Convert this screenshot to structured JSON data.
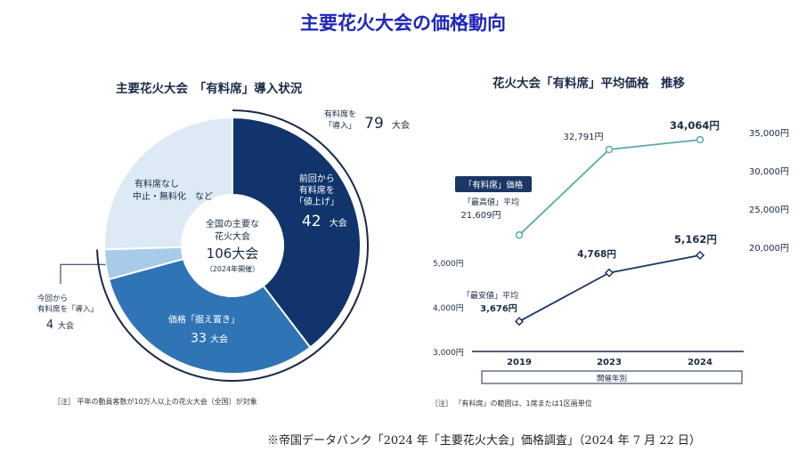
{
  "page_title": "主要花火大会の価格動向",
  "source": "※帝国データバンク「2024 年「主要花火大会」価格調査」（2024 年 7 月 22 日）",
  "colors": {
    "title": "#1f27b8",
    "navy": "#10346b",
    "mid_blue": "#2f74b5",
    "light_blue": "#a9cbea",
    "pale_blue": "#dde9f5",
    "teal": "#5fa9a4",
    "dark_line": "#1b3766"
  },
  "chart_data": [
    {
      "type": "pie",
      "title": "主要花火大会　「有料席」導入状況",
      "center_label": [
        "全国の主要な",
        "花火大会",
        "106大会",
        "（2024年開催）"
      ],
      "total": 106,
      "slices": [
        {
          "name": "前回から有料席を「値上げ」",
          "lines": [
            "前回から",
            "有料席を",
            "「値上げ」"
          ],
          "value": 42,
          "value_label": "42",
          "unit": "大会",
          "color": "#10346b"
        },
        {
          "name": "価格「据え置き」",
          "lines": [
            "価格「据え置き」"
          ],
          "value": 33,
          "value_label": "33",
          "unit": "大会",
          "color": "#2f74b5"
        },
        {
          "name": "今回から有料席を「導入」",
          "lines": [
            "今回から",
            "有料席を「導入」"
          ],
          "value": 4,
          "value_label": "4",
          "unit": "大会",
          "color": "#a9cbea"
        },
        {
          "name": "有料席なし 中止・無料化 など",
          "lines": [
            "有料席なし",
            "中止・無料化　など"
          ],
          "value": 27,
          "value_label": "",
          "unit": "",
          "color": "#dde9f5"
        }
      ],
      "bracket_label": {
        "lines": [
          "有料席を",
          "「導入」"
        ],
        "value": "79",
        "unit": "大会"
      },
      "note": "［注］ 平年の動員客数が10万人以上の花火大会（全国）が対象"
    },
    {
      "type": "line",
      "title": "花火大会「有料席」平均価格　推移",
      "x": [
        "2019",
        "2023",
        "2024"
      ],
      "xlabel": "開催年別",
      "badge": "「有料席」価格",
      "right_axis": {
        "ticks": [
          "35,000円",
          "30,000円",
          "25,000円",
          "20,000円"
        ],
        "values": [
          35000,
          30000,
          25000,
          20000
        ]
      },
      "left_axis": {
        "ticks": [
          "5,000円",
          "4,000円",
          "3,000円"
        ],
        "values": [
          5000,
          4000,
          3000
        ]
      },
      "series": [
        {
          "name": "「最高値」平均",
          "axis": "right",
          "values": [
            21609,
            32791,
            34064
          ],
          "labels": [
            "21,609円",
            "32,791円",
            "34,064円"
          ],
          "color": "#5fa9a4"
        },
        {
          "name": "「最安値」平均",
          "axis": "left",
          "values": [
            3676,
            4768,
            5162
          ],
          "labels": [
            "3,676円",
            "4,768円",
            "5,162円"
          ],
          "color": "#1b3766"
        }
      ],
      "note": "［注］ 「有料席」の範囲は、1席または1区画単位"
    }
  ]
}
